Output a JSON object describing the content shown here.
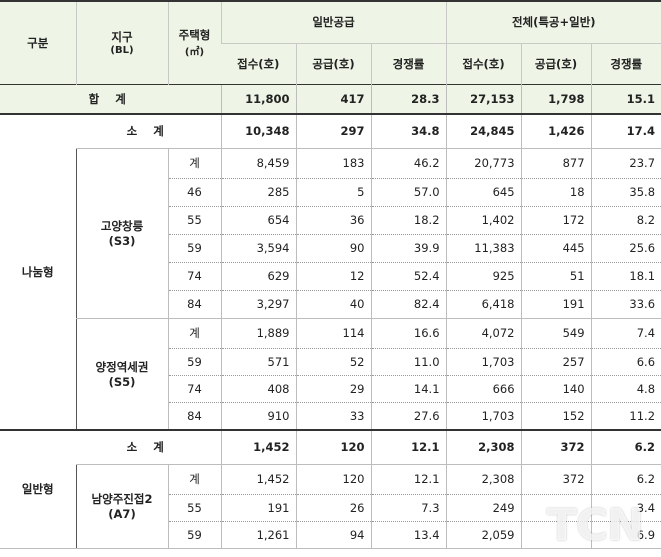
{
  "header": {
    "gubun": "구분",
    "district": "지구",
    "district_sub": "(BL)",
    "housing_type": "주택형",
    "housing_type_sub": "(㎡)",
    "general_supply": "일반공급",
    "total_group": "전체(특공+일반)",
    "cols": [
      "접수(호)",
      "공급(호)",
      "경쟁률",
      "접수(호)",
      "공급(호)",
      "경쟁률"
    ]
  },
  "total": {
    "label": "합 계",
    "values": [
      "11,800",
      "417",
      "28.3",
      "27,153",
      "1,798",
      "15.1"
    ]
  },
  "nanum": {
    "label": "나눔형",
    "subtotal": {
      "label": "소 계",
      "values": [
        "10,348",
        "297",
        "34.8",
        "24,845",
        "1,426",
        "17.4"
      ]
    },
    "districts": [
      {
        "name": "고양창릉",
        "code": "(S3)",
        "rows": [
          {
            "type": "계",
            "values": [
              "8,459",
              "183",
              "46.2",
              "20,773",
              "877",
              "23.7"
            ]
          },
          {
            "type": "46",
            "values": [
              "285",
              "5",
              "57.0",
              "645",
              "18",
              "35.8"
            ]
          },
          {
            "type": "55",
            "values": [
              "654",
              "36",
              "18.2",
              "1,402",
              "172",
              "8.2"
            ]
          },
          {
            "type": "59",
            "values": [
              "3,594",
              "90",
              "39.9",
              "11,383",
              "445",
              "25.6"
            ]
          },
          {
            "type": "74",
            "values": [
              "629",
              "12",
              "52.4",
              "925",
              "51",
              "18.1"
            ]
          },
          {
            "type": "84",
            "values": [
              "3,297",
              "40",
              "82.4",
              "6,418",
              "191",
              "33.6"
            ]
          }
        ]
      },
      {
        "name": "양정역세권",
        "code": "(S5)",
        "rows": [
          {
            "type": "계",
            "values": [
              "1,889",
              "114",
              "16.6",
              "4,072",
              "549",
              "7.4"
            ]
          },
          {
            "type": "59",
            "values": [
              "571",
              "52",
              "11.0",
              "1,703",
              "257",
              "6.6"
            ]
          },
          {
            "type": "74",
            "values": [
              "408",
              "29",
              "14.1",
              "666",
              "140",
              "4.8"
            ]
          },
          {
            "type": "84",
            "values": [
              "910",
              "33",
              "27.6",
              "1,703",
              "152",
              "11.2"
            ]
          }
        ]
      }
    ]
  },
  "general": {
    "label": "일반형",
    "subtotal": {
      "label": "소 계",
      "values": [
        "1,452",
        "120",
        "12.1",
        "2,308",
        "372",
        "6.2"
      ]
    },
    "districts": [
      {
        "name": "남양주진접2",
        "code": "(A7)",
        "rows": [
          {
            "type": "계",
            "values": [
              "1,452",
              "120",
              "12.1",
              "2,308",
              "372",
              "6.2"
            ]
          },
          {
            "type": "55",
            "values": [
              "191",
              "26",
              "7.3",
              "249",
              "",
              "3.4"
            ]
          },
          {
            "type": "59",
            "values": [
              "1,261",
              "94",
              "13.4",
              "2,059",
              "",
              "6.9"
            ]
          }
        ]
      }
    ]
  },
  "watermark": "TCN"
}
